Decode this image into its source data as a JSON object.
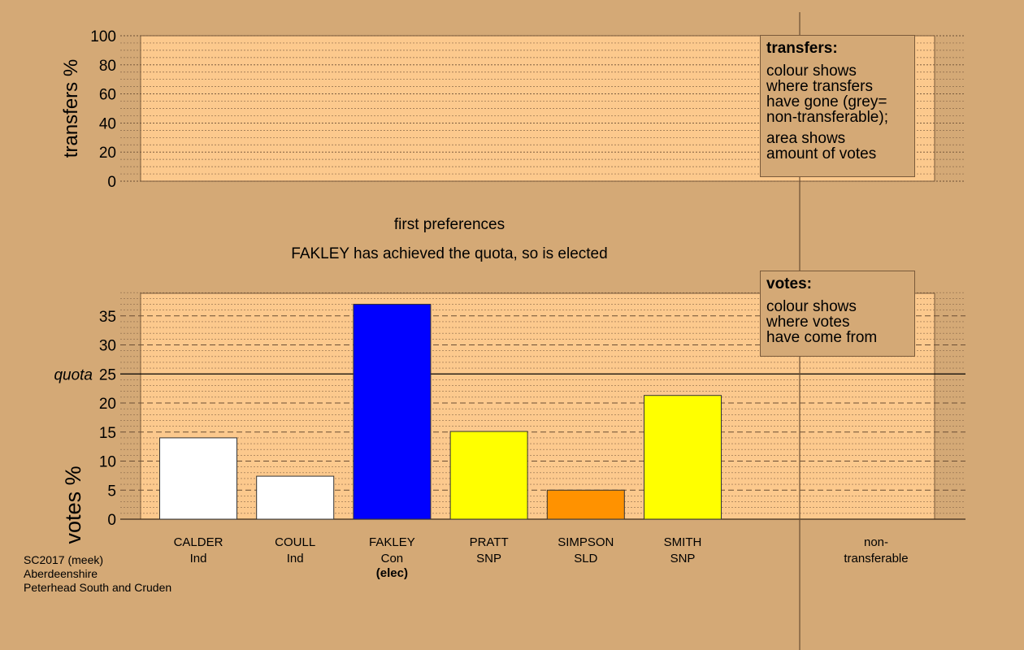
{
  "header": {
    "round_label": "first preferences",
    "status_message": "FAKLEY has achieved the quota, so is elected"
  },
  "transfers_legend": {
    "title": "transfers:",
    "line1": "colour shows",
    "line2": "where transfers",
    "line3": "have gone (grey=",
    "line4": "non-transferable);",
    "line5": "area shows",
    "line6": "amount of votes"
  },
  "votes_legend": {
    "title": "votes:",
    "line1": "colour shows",
    "line2": "where votes",
    "line3": "have come from"
  },
  "footer": {
    "line1": "SC2017 (meek)",
    "line2": "Aberdeenshire",
    "line3": "Peterhead South and Cruden"
  },
  "colors": {
    "background": "#d4a976",
    "plot_background": "#fcc98d",
    "Ind": "#ffffff",
    "Con": "#0000ff",
    "SNP": "#ffff00",
    "SLD": "#ff9200"
  },
  "chart_data": [
    {
      "type": "bar",
      "name": "transfers",
      "ylabel": "transfers %",
      "ylim": [
        0,
        100
      ],
      "yticks": [
        "0",
        "20",
        "40",
        "60",
        "80",
        "100"
      ],
      "categories": [],
      "values": []
    },
    {
      "type": "bar",
      "name": "votes",
      "ylabel": "votes %",
      "ylim": [
        0,
        39
      ],
      "yticks": [
        "0",
        "5",
        "10",
        "15",
        "20",
        "25",
        "30",
        "35"
      ],
      "quota": 25,
      "quota_label": "quota",
      "categories": [
        {
          "name": "CALDER",
          "party": "Ind",
          "note": ""
        },
        {
          "name": "COULL",
          "party": "Ind",
          "note": ""
        },
        {
          "name": "FAKLEY",
          "party": "Con",
          "note": "(elec)"
        },
        {
          "name": "PRATT",
          "party": "SNP",
          "note": ""
        },
        {
          "name": "SIMPSON",
          "party": "SLD",
          "note": ""
        },
        {
          "name": "SMITH",
          "party": "SNP",
          "note": ""
        }
      ],
      "values": [
        14.0,
        7.4,
        37.0,
        15.1,
        5.0,
        21.3
      ],
      "extra_category": {
        "line1": "non-",
        "line2": "transferable",
        "value": 0
      }
    }
  ]
}
